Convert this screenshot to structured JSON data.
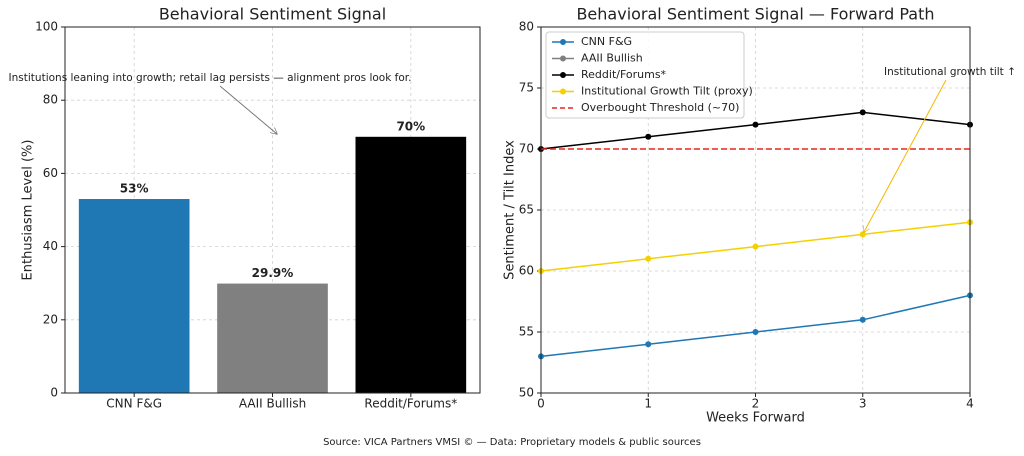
{
  "chart_data": [
    {
      "type": "bar",
      "title": "Behavioral Sentiment Signal",
      "ylabel": "Enthusiasm Level (%)",
      "categories": [
        "CNN F&G",
        "AAII Bullish",
        "Reddit/Forums*"
      ],
      "values": [
        53,
        29.9,
        70
      ],
      "value_labels": [
        "53%",
        "29.9%",
        "70%"
      ],
      "colors": [
        "#1f77b4",
        "#808080",
        "#000000"
      ],
      "ylim": [
        0,
        100
      ],
      "yticks": [
        0,
        20,
        40,
        60,
        80,
        100
      ],
      "grid": true,
      "annotation": "Institutions leaning into growth; retail lag persists — alignment pros look for."
    },
    {
      "type": "line",
      "title": "Behavioral Sentiment Signal — Forward Path",
      "xlabel": "Weeks Forward",
      "ylabel": "Sentiment / Tilt Index",
      "x": [
        0,
        1,
        2,
        3,
        4
      ],
      "xlim": [
        0,
        4
      ],
      "xticks": [
        0,
        1,
        2,
        3,
        4
      ],
      "ylim": [
        50,
        80
      ],
      "yticks": [
        50,
        55,
        60,
        65,
        70,
        75,
        80
      ],
      "grid": true,
      "legend": "upper left",
      "series": [
        {
          "name": "CNN F&G",
          "color": "#1f77b4",
          "values": [
            53,
            54,
            55,
            56,
            58
          ]
        },
        {
          "name": "AAII Bullish",
          "color": "#808080",
          "values": [
            null,
            null,
            null,
            null,
            null
          ]
        },
        {
          "name": "Reddit/Forums*",
          "color": "#000000",
          "values": [
            70,
            71,
            72,
            73,
            72
          ]
        },
        {
          "name": "Institutional Growth Tilt (proxy)",
          "color": "#f5d000",
          "values": [
            60,
            61,
            62,
            63,
            64
          ]
        },
        {
          "name": "Overbought Threshold (~70)",
          "color": "#e8261f",
          "dashed": true,
          "values": [
            70,
            70,
            70,
            70,
            70
          ]
        }
      ],
      "annotation": "Institutional growth tilt ↑"
    }
  ],
  "footer": "Source: VICA Partners VMSI © — Data: Proprietary models & public sources"
}
